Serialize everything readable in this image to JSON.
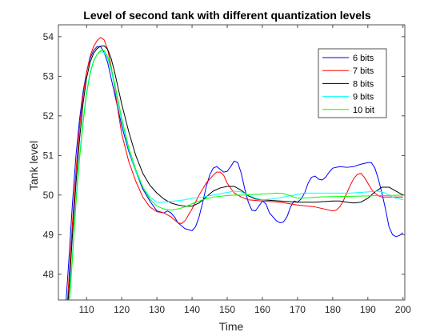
{
  "chart_data": {
    "type": "line",
    "title": "Level of second tank with different quantization levels",
    "xlabel": "Time",
    "ylabel": "Tank level",
    "xlim": [
      102,
      200.5
    ],
    "ylim": [
      47.35,
      54.3
    ],
    "xticks": [
      110,
      120,
      130,
      140,
      150,
      160,
      170,
      180,
      190,
      200
    ],
    "yticks": [
      48,
      49,
      50,
      51,
      52,
      53,
      54
    ],
    "grid": false,
    "legend_position": "top-right",
    "series": [
      {
        "name": "6 bits",
        "color": "#0000ff",
        "points": [
          [
            104.2,
            47.35
          ],
          [
            105,
            48.4
          ],
          [
            106,
            49.8
          ],
          [
            107,
            51.0
          ],
          [
            108,
            51.9
          ],
          [
            109,
            52.6
          ],
          [
            110,
            53.1
          ],
          [
            111,
            53.45
          ],
          [
            112,
            53.65
          ],
          [
            113,
            53.75
          ],
          [
            114,
            53.75
          ],
          [
            115,
            53.6
          ],
          [
            116,
            53.35
          ],
          [
            117,
            52.95
          ],
          [
            118,
            52.55
          ],
          [
            119,
            52.15
          ],
          [
            120,
            51.75
          ],
          [
            122,
            51.1
          ],
          [
            124,
            50.6
          ],
          [
            126,
            50.15
          ],
          [
            128,
            49.85
          ],
          [
            130,
            49.6
          ],
          [
            132,
            49.55
          ],
          [
            133,
            49.6
          ],
          [
            134,
            49.55
          ],
          [
            135,
            49.45
          ],
          [
            136,
            49.3
          ],
          [
            138,
            49.15
          ],
          [
            140,
            49.1
          ],
          [
            141,
            49.2
          ],
          [
            142,
            49.45
          ],
          [
            143,
            49.8
          ],
          [
            144,
            50.2
          ],
          [
            145,
            50.5
          ],
          [
            146,
            50.68
          ],
          [
            147,
            50.72
          ],
          [
            148,
            50.65
          ],
          [
            149,
            50.58
          ],
          [
            150,
            50.6
          ],
          [
            151,
            50.72
          ],
          [
            152,
            50.86
          ],
          [
            153,
            50.82
          ],
          [
            154,
            50.55
          ],
          [
            155,
            50.15
          ],
          [
            156,
            49.82
          ],
          [
            157,
            49.62
          ],
          [
            158,
            49.6
          ],
          [
            159,
            49.72
          ],
          [
            160,
            49.85
          ],
          [
            161,
            49.78
          ],
          [
            162,
            49.55
          ],
          [
            163,
            49.45
          ],
          [
            164,
            49.35
          ],
          [
            165,
            49.3
          ],
          [
            166,
            49.32
          ],
          [
            167,
            49.45
          ],
          [
            168,
            49.7
          ],
          [
            169,
            49.85
          ],
          [
            170,
            49.82
          ],
          [
            171,
            49.9
          ],
          [
            172,
            50.05
          ],
          [
            173,
            50.3
          ],
          [
            174,
            50.45
          ],
          [
            175,
            50.48
          ],
          [
            176,
            50.4
          ],
          [
            177,
            50.38
          ],
          [
            178,
            50.45
          ],
          [
            179,
            50.58
          ],
          [
            180,
            50.68
          ],
          [
            182,
            50.72
          ],
          [
            184,
            50.7
          ],
          [
            186,
            50.72
          ],
          [
            188,
            50.78
          ],
          [
            190,
            50.82
          ],
          [
            191,
            50.82
          ],
          [
            192,
            50.68
          ],
          [
            193,
            50.4
          ],
          [
            194,
            50.05
          ],
          [
            195,
            49.65
          ],
          [
            196,
            49.2
          ],
          [
            197,
            49.0
          ],
          [
            198,
            48.95
          ],
          [
            199,
            48.98
          ],
          [
            200,
            49.05
          ]
        ]
      },
      {
        "name": "7 bits",
        "color": "#ff0000",
        "points": [
          [
            104.6,
            47.35
          ],
          [
            105,
            47.9
          ],
          [
            106,
            49.3
          ],
          [
            107,
            50.6
          ],
          [
            108,
            51.7
          ],
          [
            109,
            52.5
          ],
          [
            110,
            53.1
          ],
          [
            111,
            53.5
          ],
          [
            112,
            53.75
          ],
          [
            113,
            53.9
          ],
          [
            114,
            53.98
          ],
          [
            115,
            53.92
          ],
          [
            116,
            53.68
          ],
          [
            117,
            53.25
          ],
          [
            118,
            52.7
          ],
          [
            119,
            52.1
          ],
          [
            120,
            51.55
          ],
          [
            122,
            50.85
          ],
          [
            124,
            50.35
          ],
          [
            126,
            49.95
          ],
          [
            128,
            49.7
          ],
          [
            130,
            49.58
          ],
          [
            132,
            49.55
          ],
          [
            134,
            49.45
          ],
          [
            136,
            49.3
          ],
          [
            137,
            49.28
          ],
          [
            138,
            49.35
          ],
          [
            140,
            49.65
          ],
          [
            142,
            50.0
          ],
          [
            144,
            50.3
          ],
          [
            146,
            50.5
          ],
          [
            147,
            50.58
          ],
          [
            148,
            50.58
          ],
          [
            149,
            50.5
          ],
          [
            150,
            50.3
          ],
          [
            152,
            50.05
          ],
          [
            154,
            49.95
          ],
          [
            156,
            49.88
          ],
          [
            160,
            49.85
          ],
          [
            165,
            49.82
          ],
          [
            170,
            49.75
          ],
          [
            175,
            49.7
          ],
          [
            180,
            49.6
          ],
          [
            181,
            49.62
          ],
          [
            182,
            49.7
          ],
          [
            183,
            49.85
          ],
          [
            184,
            50.05
          ],
          [
            185,
            50.25
          ],
          [
            186,
            50.42
          ],
          [
            187,
            50.52
          ],
          [
            188,
            50.55
          ],
          [
            189,
            50.45
          ],
          [
            190,
            50.3
          ],
          [
            191,
            50.15
          ],
          [
            192,
            50.05
          ],
          [
            193,
            49.98
          ],
          [
            194,
            49.95
          ],
          [
            196,
            49.95
          ],
          [
            198,
            49.95
          ],
          [
            200,
            49.95
          ]
        ]
      },
      {
        "name": "8 bits",
        "color": "#000000",
        "points": [
          [
            104.8,
            47.35
          ],
          [
            105,
            47.6
          ],
          [
            106,
            49.0
          ],
          [
            107,
            50.3
          ],
          [
            108,
            51.4
          ],
          [
            109,
            52.3
          ],
          [
            110,
            52.95
          ],
          [
            111,
            53.35
          ],
          [
            112,
            53.58
          ],
          [
            113,
            53.7
          ],
          [
            114,
            53.76
          ],
          [
            115,
            53.77
          ],
          [
            116,
            53.68
          ],
          [
            117,
            53.45
          ],
          [
            118,
            53.1
          ],
          [
            119,
            52.7
          ],
          [
            120,
            52.3
          ],
          [
            122,
            51.6
          ],
          [
            124,
            51.0
          ],
          [
            126,
            50.55
          ],
          [
            128,
            50.25
          ],
          [
            130,
            50.05
          ],
          [
            132,
            49.9
          ],
          [
            134,
            49.8
          ],
          [
            136,
            49.75
          ],
          [
            138,
            49.72
          ],
          [
            140,
            49.72
          ],
          [
            142,
            49.8
          ],
          [
            144,
            49.95
          ],
          [
            146,
            50.1
          ],
          [
            148,
            50.18
          ],
          [
            150,
            50.22
          ],
          [
            152,
            50.22
          ],
          [
            154,
            50.12
          ],
          [
            156,
            49.98
          ],
          [
            158,
            49.9
          ],
          [
            160,
            49.88
          ],
          [
            165,
            49.85
          ],
          [
            170,
            49.82
          ],
          [
            175,
            49.82
          ],
          [
            180,
            49.85
          ],
          [
            182,
            49.85
          ],
          [
            184,
            49.82
          ],
          [
            186,
            49.8
          ],
          [
            188,
            49.82
          ],
          [
            190,
            49.92
          ],
          [
            192,
            50.08
          ],
          [
            194,
            50.2
          ],
          [
            196,
            50.2
          ],
          [
            198,
            50.1
          ],
          [
            200,
            50.0
          ]
        ]
      },
      {
        "name": "9 bits",
        "color": "#00ffff",
        "points": [
          [
            105,
            47.35
          ],
          [
            106,
            48.5
          ],
          [
            107,
            49.9
          ],
          [
            108,
            51.0
          ],
          [
            109,
            51.9
          ],
          [
            110,
            52.6
          ],
          [
            111,
            53.1
          ],
          [
            112,
            53.4
          ],
          [
            113,
            53.55
          ],
          [
            114,
            53.62
          ],
          [
            115,
            53.6
          ],
          [
            116,
            53.45
          ],
          [
            117,
            53.15
          ],
          [
            118,
            52.75
          ],
          [
            119,
            52.3
          ],
          [
            120,
            51.85
          ],
          [
            122,
            51.15
          ],
          [
            124,
            50.6
          ],
          [
            126,
            50.2
          ],
          [
            128,
            49.95
          ],
          [
            130,
            49.82
          ],
          [
            132,
            49.82
          ],
          [
            135,
            49.85
          ],
          [
            138,
            49.88
          ],
          [
            140,
            49.92
          ],
          [
            143,
            49.95
          ],
          [
            146,
            50.0
          ],
          [
            149,
            50.05
          ],
          [
            152,
            50.1
          ],
          [
            154,
            50.08
          ],
          [
            156,
            50.0
          ],
          [
            158,
            49.92
          ],
          [
            160,
            49.88
          ],
          [
            163,
            49.9
          ],
          [
            166,
            49.95
          ],
          [
            169,
            50.0
          ],
          [
            172,
            50.05
          ],
          [
            176,
            50.05
          ],
          [
            180,
            50.05
          ],
          [
            185,
            50.05
          ],
          [
            190,
            50.08
          ],
          [
            193,
            50.1
          ],
          [
            195,
            50.05
          ],
          [
            197,
            49.95
          ],
          [
            200,
            49.88
          ]
        ]
      },
      {
        "name": "10 bit",
        "color": "#00ff00",
        "points": [
          [
            105.2,
            47.35
          ],
          [
            106,
            48.4
          ],
          [
            107,
            49.8
          ],
          [
            108,
            50.9
          ],
          [
            109,
            51.8
          ],
          [
            110,
            52.55
          ],
          [
            111,
            53.05
          ],
          [
            112,
            53.38
          ],
          [
            113,
            53.55
          ],
          [
            114,
            53.65
          ],
          [
            115,
            53.65
          ],
          [
            116,
            53.5
          ],
          [
            117,
            53.22
          ],
          [
            118,
            52.82
          ],
          [
            119,
            52.38
          ],
          [
            120,
            51.95
          ],
          [
            122,
            51.2
          ],
          [
            124,
            50.65
          ],
          [
            126,
            50.2
          ],
          [
            128,
            49.9
          ],
          [
            130,
            49.72
          ],
          [
            132,
            49.65
          ],
          [
            134,
            49.62
          ],
          [
            136,
            49.65
          ],
          [
            138,
            49.7
          ],
          [
            140,
            49.78
          ],
          [
            143,
            49.88
          ],
          [
            146,
            49.95
          ],
          [
            149,
            49.98
          ],
          [
            152,
            50.0
          ],
          [
            155,
            50.0
          ],
          [
            158,
            50.02
          ],
          [
            161,
            50.03
          ],
          [
            164,
            50.05
          ],
          [
            166,
            50.04
          ],
          [
            168,
            49.98
          ],
          [
            170,
            49.92
          ],
          [
            173,
            49.93
          ],
          [
            176,
            49.95
          ],
          [
            180,
            49.96
          ],
          [
            185,
            49.97
          ],
          [
            190,
            49.98
          ],
          [
            195,
            49.99
          ],
          [
            200,
            50.0
          ]
        ]
      }
    ]
  }
}
